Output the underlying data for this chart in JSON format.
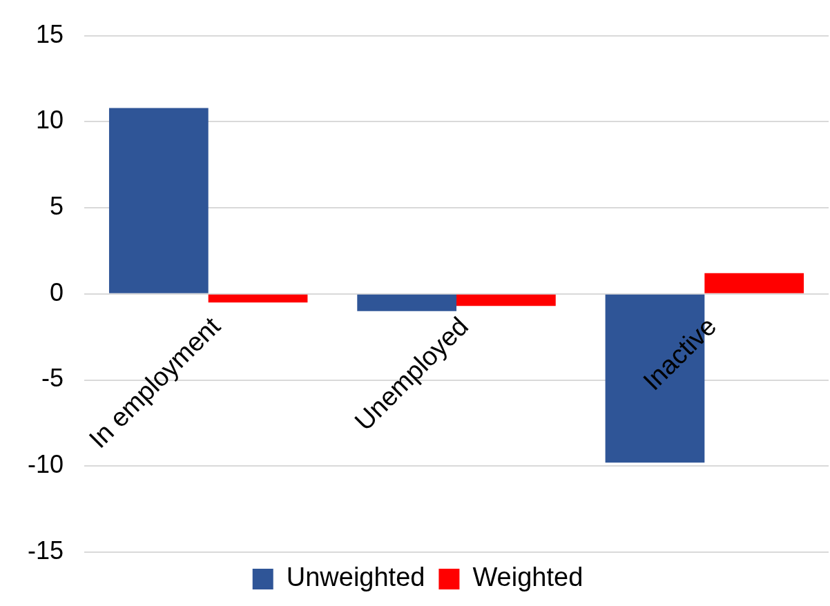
{
  "chart_data": {
    "type": "bar",
    "categories": [
      "In employment",
      "Unemployed",
      "Inactive"
    ],
    "series": [
      {
        "name": "Unweighted",
        "color": "#2f5597",
        "values": [
          10.8,
          -1.0,
          -9.8
        ]
      },
      {
        "name": "Weighted",
        "color": "#ff0000",
        "values": [
          -0.5,
          -0.7,
          1.2
        ]
      }
    ],
    "ylim": [
      -15,
      15
    ],
    "yticks": [
      -15,
      -10,
      -5,
      0,
      5,
      10,
      15
    ],
    "grid": "y",
    "legend": "bottom"
  }
}
